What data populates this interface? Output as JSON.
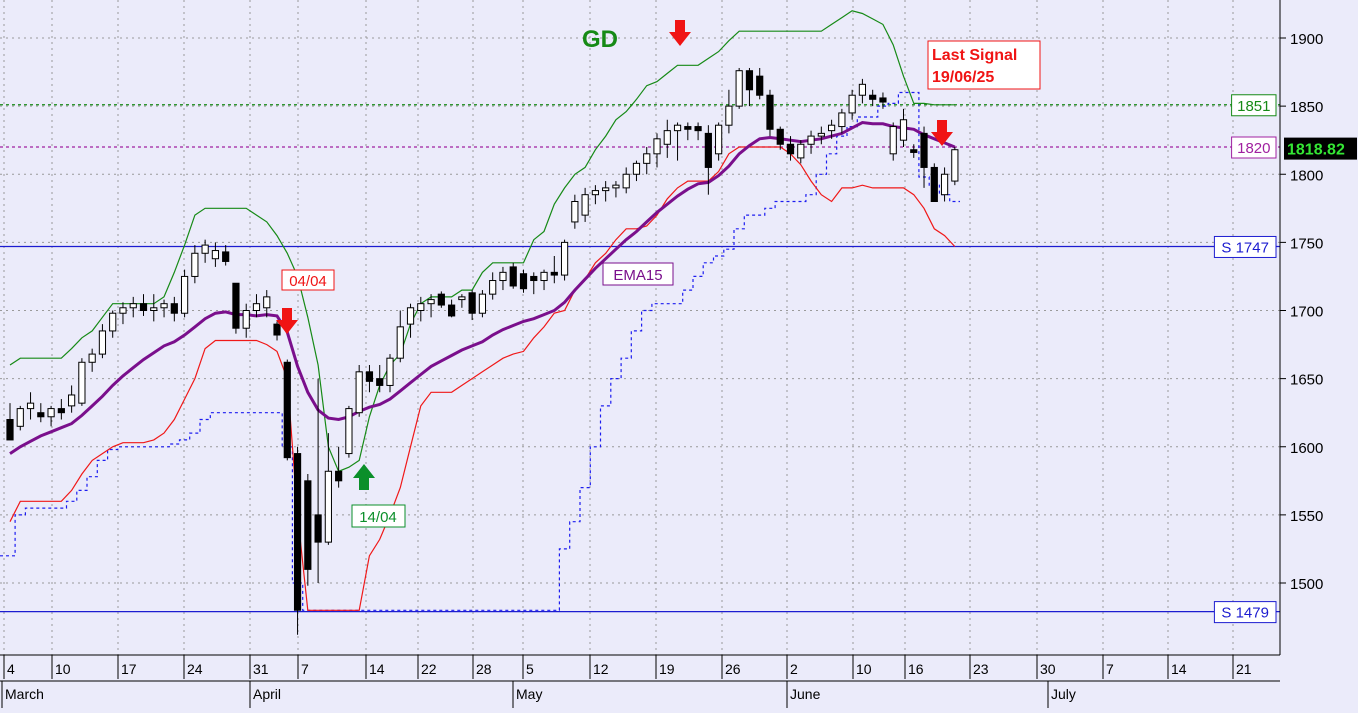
{
  "chart_data": {
    "type": "candlestick",
    "title": "",
    "ylim": [
      1440,
      1920
    ],
    "y_ticks": [
      "1500",
      "1550",
      "1600",
      "1650",
      "1700",
      "1750",
      "1800",
      "1850",
      "1900"
    ],
    "x_day_labels": [
      "4",
      "10",
      "17",
      "24",
      "31",
      "7",
      "14",
      "22",
      "28",
      "5",
      "12",
      "19",
      "26",
      "2",
      "10",
      "16",
      "23",
      "30",
      "7",
      "14",
      "21"
    ],
    "x_month_labels": [
      "March",
      "April",
      "May",
      "June",
      "July"
    ],
    "last_price": "1818.82",
    "colors": {
      "background": "#ebebfa",
      "upper_band": "#168a16",
      "lower_band": "#f01818",
      "stop_line": "#1c1cf0",
      "ema": "#7a0f8c",
      "support": "#1c1cd0",
      "signal_buy": "#0b8f2a",
      "signal_sell": "#f01414",
      "last_price_bg": "#000000",
      "last_price_fg": "#34e634"
    },
    "annotations": {
      "gd": "GD",
      "ema_label": "EMA15",
      "signal_sell_1": "04/04",
      "signal_buy_1": "14/04",
      "last_signal_line1": "Last Signal",
      "last_signal_line2": "19/06/25"
    },
    "levels": [
      {
        "label": "1851",
        "value": 1851,
        "style": "dashed",
        "color": "#168a16"
      },
      {
        "label": "1820",
        "value": 1820,
        "style": "dashed",
        "color": "#a020a0"
      },
      {
        "label": "S 1747",
        "value": 1747,
        "style": "solid",
        "color": "#1c1cd0"
      },
      {
        "label": "S 1479",
        "value": 1479,
        "style": "solid",
        "color": "#1c1cd0"
      }
    ],
    "candles": [
      [
        1620,
        1632,
        1605,
        1605
      ],
      [
        1615,
        1630,
        1612,
        1628
      ],
      [
        1628,
        1640,
        1620,
        1632
      ],
      [
        1625,
        1632,
        1618,
        1622
      ],
      [
        1622,
        1630,
        1615,
        1628
      ],
      [
        1628,
        1635,
        1620,
        1625
      ],
      [
        1630,
        1645,
        1625,
        1638
      ],
      [
        1632,
        1665,
        1630,
        1662
      ],
      [
        1662,
        1672,
        1655,
        1668
      ],
      [
        1668,
        1690,
        1665,
        1685
      ],
      [
        1685,
        1700,
        1680,
        1698
      ],
      [
        1698,
        1706,
        1690,
        1702
      ],
      [
        1702,
        1710,
        1695,
        1705
      ],
      [
        1705,
        1712,
        1696,
        1700
      ],
      [
        1700,
        1712,
        1692,
        1702
      ],
      [
        1702,
        1708,
        1695,
        1705
      ],
      [
        1705,
        1710,
        1692,
        1698
      ],
      [
        1698,
        1730,
        1695,
        1725
      ],
      [
        1725,
        1748,
        1720,
        1742
      ],
      [
        1742,
        1752,
        1735,
        1748
      ],
      [
        1738,
        1750,
        1732,
        1744
      ],
      [
        1743,
        1748,
        1733,
        1736
      ],
      [
        1720,
        1720,
        1683,
        1687
      ],
      [
        1687,
        1705,
        1680,
        1700
      ],
      [
        1700,
        1712,
        1695,
        1705
      ],
      [
        1702,
        1715,
        1695,
        1710
      ],
      [
        1690,
        1692,
        1678,
        1682
      ],
      [
        1662,
        1664,
        1590,
        1592
      ],
      [
        1595,
        1600,
        1462,
        1480
      ],
      [
        1575,
        1580,
        1498,
        1510
      ],
      [
        1550,
        1650,
        1500,
        1530
      ],
      [
        1530,
        1610,
        1528,
        1582
      ],
      [
        1582,
        1600,
        1570,
        1575
      ],
      [
        1595,
        1630,
        1592,
        1628
      ],
      [
        1625,
        1660,
        1622,
        1655
      ],
      [
        1655,
        1660,
        1640,
        1648
      ],
      [
        1650,
        1660,
        1640,
        1645
      ],
      [
        1645,
        1668,
        1640,
        1665
      ],
      [
        1665,
        1700,
        1662,
        1688
      ],
      [
        1690,
        1705,
        1680,
        1702
      ],
      [
        1700,
        1710,
        1692,
        1705
      ],
      [
        1705,
        1712,
        1695,
        1708
      ],
      [
        1712,
        1714,
        1702,
        1704
      ],
      [
        1704,
        1708,
        1695,
        1696
      ],
      [
        1708,
        1712,
        1702,
        1710
      ],
      [
        1713,
        1715,
        1693,
        1698
      ],
      [
        1698,
        1715,
        1695,
        1712
      ],
      [
        1712,
        1728,
        1708,
        1722
      ],
      [
        1722,
        1732,
        1715,
        1728
      ],
      [
        1732,
        1735,
        1716,
        1718
      ],
      [
        1727,
        1730,
        1713,
        1716
      ],
      [
        1725,
        1728,
        1712,
        1722
      ],
      [
        1722,
        1730,
        1715,
        1728
      ],
      [
        1728,
        1740,
        1720,
        1726
      ],
      [
        1726,
        1752,
        1722,
        1750
      ],
      [
        1765,
        1785,
        1760,
        1780
      ],
      [
        1770,
        1790,
        1765,
        1785
      ],
      [
        1785,
        1792,
        1778,
        1788
      ],
      [
        1788,
        1795,
        1780,
        1790
      ],
      [
        1790,
        1795,
        1783,
        1792
      ],
      [
        1790,
        1805,
        1786,
        1800
      ],
      [
        1800,
        1810,
        1795,
        1808
      ],
      [
        1808,
        1820,
        1800,
        1815
      ],
      [
        1815,
        1830,
        1805,
        1826
      ],
      [
        1822,
        1840,
        1812,
        1832
      ],
      [
        1832,
        1838,
        1810,
        1836
      ],
      [
        1835,
        1838,
        1825,
        1833
      ],
      [
        1835,
        1838,
        1825,
        1832
      ],
      [
        1830,
        1836,
        1785,
        1805
      ],
      [
        1815,
        1838,
        1810,
        1836
      ],
      [
        1836,
        1862,
        1830,
        1850
      ],
      [
        1850,
        1878,
        1848,
        1876
      ],
      [
        1876,
        1878,
        1850,
        1862
      ],
      [
        1872,
        1878,
        1855,
        1858
      ],
      [
        1858,
        1862,
        1828,
        1833
      ],
      [
        1833,
        1835,
        1818,
        1822
      ],
      [
        1822,
        1828,
        1810,
        1815
      ],
      [
        1812,
        1825,
        1808,
        1822
      ],
      [
        1822,
        1832,
        1815,
        1828
      ],
      [
        1828,
        1835,
        1822,
        1830
      ],
      [
        1832,
        1840,
        1826,
        1836
      ],
      [
        1835,
        1848,
        1830,
        1845
      ],
      [
        1845,
        1862,
        1840,
        1858
      ],
      [
        1858,
        1870,
        1852,
        1866
      ],
      [
        1858,
        1862,
        1850,
        1855
      ],
      [
        1856,
        1860,
        1848,
        1853
      ],
      [
        1815,
        1838,
        1810,
        1835
      ],
      [
        1825,
        1848,
        1820,
        1840
      ],
      [
        1818,
        1822,
        1812,
        1816
      ],
      [
        1830,
        1835,
        1790,
        1805
      ],
      [
        1805,
        1808,
        1780,
        1780
      ],
      [
        1785,
        1805,
        1780,
        1800
      ],
      [
        1795,
        1820,
        1792,
        1818
      ]
    ],
    "ema15": [
      1595,
      1600,
      1604,
      1608,
      1611,
      1614,
      1617,
      1623,
      1630,
      1637,
      1645,
      1652,
      1658,
      1664,
      1669,
      1674,
      1677,
      1682,
      1688,
      1694,
      1698,
      1699,
      1697,
      1697,
      1696,
      1697,
      1696,
      1684,
      1659,
      1640,
      1627,
      1621,
      1620,
      1622,
      1626,
      1629,
      1631,
      1635,
      1641,
      1647,
      1653,
      1659,
      1663,
      1667,
      1671,
      1674,
      1677,
      1682,
      1686,
      1689,
      1692,
      1694,
      1697,
      1700,
      1706,
      1715,
      1723,
      1731,
      1738,
      1745,
      1752,
      1758,
      1765,
      1772,
      1778,
      1784,
      1789,
      1793,
      1794,
      1799,
      1806,
      1815,
      1821,
      1826,
      1827,
      1826,
      1825,
      1824,
      1825,
      1826,
      1828,
      1830,
      1834,
      1838,
      1837,
      1837,
      1835,
      1834,
      1833,
      1829,
      1826,
      1823,
      1820
    ],
    "upper_band": [
      1660,
      1665,
      1665,
      1665,
      1665,
      1665,
      1672,
      1680,
      1685,
      1695,
      1705,
      1705,
      1705,
      1705,
      1705,
      1710,
      1728,
      1748,
      1770,
      1775,
      1775,
      1775,
      1775,
      1775,
      1770,
      1765,
      1755,
      1742,
      1725,
      1695,
      1660,
      1600,
      1582,
      1585,
      1590,
      1622,
      1645,
      1660,
      1668,
      1690,
      1705,
      1710,
      1710,
      1710,
      1715,
      1715,
      1728,
      1735,
      1735,
      1735,
      1735,
      1752,
      1758,
      1778,
      1790,
      1800,
      1805,
      1818,
      1828,
      1840,
      1846,
      1855,
      1865,
      1868,
      1874,
      1880,
      1880,
      1880,
      1885,
      1890,
      1898,
      1905,
      1905,
      1905,
      1905,
      1905,
      1905,
      1905,
      1905,
      1905,
      1910,
      1915,
      1920,
      1918,
      1914,
      1910,
      1895,
      1872,
      1852,
      1852,
      1851,
      1851,
      1851
    ],
    "lower_band": [
      1545,
      1560,
      1560,
      1560,
      1560,
      1560,
      1568,
      1580,
      1590,
      1595,
      1600,
      1603,
      1603,
      1603,
      1605,
      1610,
      1620,
      1635,
      1650,
      1672,
      1678,
      1678,
      1678,
      1678,
      1678,
      1675,
      1670,
      1650,
      1550,
      1480,
      1480,
      1480,
      1480,
      1480,
      1480,
      1520,
      1532,
      1550,
      1570,
      1600,
      1630,
      1640,
      1640,
      1640,
      1645,
      1650,
      1655,
      1660,
      1665,
      1668,
      1670,
      1680,
      1688,
      1698,
      1700,
      1715,
      1723,
      1735,
      1742,
      1752,
      1760,
      1760,
      1762,
      1770,
      1782,
      1790,
      1795,
      1795,
      1795,
      1802,
      1815,
      1820,
      1820,
      1820,
      1820,
      1820,
      1815,
      1807,
      1795,
      1785,
      1780,
      1790,
      1790,
      1792,
      1790,
      1790,
      1790,
      1790,
      1785,
      1775,
      1760,
      1755,
      1747
    ],
    "stop_line": [
      1520,
      1550,
      1555,
      1555,
      1555,
      1555,
      1560,
      1568,
      1578,
      1590,
      1598,
      1600,
      1600,
      1600,
      1600,
      1600,
      1602,
      1605,
      1610,
      1620,
      1625,
      1625,
      1625,
      1625,
      1625,
      1625,
      1625,
      1600,
      1500,
      1480,
      1480,
      1480,
      1480,
      1480,
      1480,
      1480,
      1480,
      1480,
      1480,
      1480,
      1480,
      1480,
      1480,
      1480,
      1480,
      1480,
      1480,
      1480,
      1480,
      1480,
      1480,
      1480,
      1480,
      1480,
      1525,
      1545,
      1570,
      1600,
      1630,
      1650,
      1665,
      1685,
      1700,
      1705,
      1705,
      1705,
      1715,
      1725,
      1735,
      1740,
      1745,
      1760,
      1770,
      1770,
      1775,
      1780,
      1780,
      1780,
      1785,
      1800,
      1815,
      1828,
      1835,
      1842,
      1842,
      1850,
      1852,
      1860,
      1860,
      1798,
      1792,
      1785,
      1780
    ]
  }
}
